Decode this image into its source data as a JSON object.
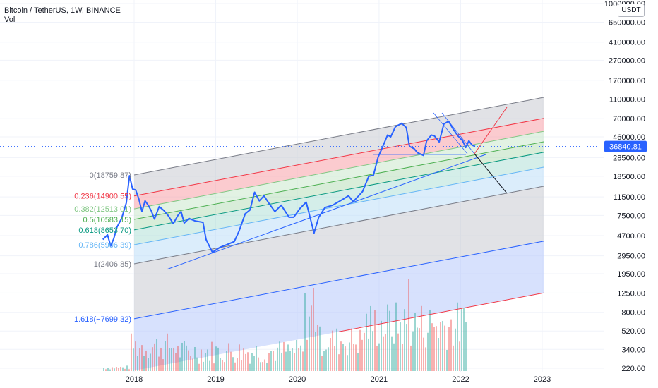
{
  "header": {
    "title": "Bitcoin / TetherUS, 1W, BINANCE",
    "indicator": "Vol"
  },
  "currency_badge": "USDT",
  "colors": {
    "price_line": "#2962ff",
    "last_price_tag": "#2962ff",
    "fib_0": "#787b86",
    "fib_0_236": "#f23645",
    "fib_0_382": "#81c784",
    "fib_0_5": "#4caf50",
    "fib_0_618": "#089981",
    "fib_0_786": "#64b5f6",
    "fib_1": "#787b86",
    "fib_1_618": "#2962ff",
    "volume_up": "#26a69a",
    "volume_down": "#ef5350"
  },
  "chart_data": {
    "type": "line",
    "title": "Bitcoin / TetherUS, 1W, BINANCE",
    "y_scale": "log",
    "y_ticks": [
      "1000000.00",
      "650000.00",
      "410000.00",
      "270000.00",
      "170000.00",
      "110000.00",
      "70000.00",
      "46000.00",
      "28500.00",
      "18500.00",
      "11500.00",
      "7500.00",
      "4700.00",
      "2950.00",
      "1950.00",
      "1250.00",
      "800.00",
      "520.00",
      "340.00",
      "220.00"
    ],
    "x_ticks": [
      "2018",
      "2019",
      "2020",
      "2021",
      "2022",
      "2023"
    ],
    "last_price": "36840.81",
    "price_series": {
      "name": "BTCUSDT",
      "points": [
        [
          "2017-08-14",
          4300
        ],
        [
          "2017-09-04",
          4800
        ],
        [
          "2017-09-18",
          3700
        ],
        [
          "2017-10-02",
          4400
        ],
        [
          "2017-10-16",
          5700
        ],
        [
          "2017-11-06",
          7000
        ],
        [
          "2017-11-27",
          10000
        ],
        [
          "2017-12-11",
          18759
        ],
        [
          "2017-12-25",
          13800
        ],
        [
          "2018-01-08",
          13500
        ],
        [
          "2018-01-22",
          11000
        ],
        [
          "2018-02-05",
          8200
        ],
        [
          "2018-02-19",
          10500
        ],
        [
          "2018-03-05",
          9500
        ],
        [
          "2018-03-19",
          8300
        ],
        [
          "2018-04-02",
          6900
        ],
        [
          "2018-04-23",
          9200
        ],
        [
          "2018-05-14",
          8400
        ],
        [
          "2018-06-04",
          7400
        ],
        [
          "2018-06-25",
          6200
        ],
        [
          "2018-07-16",
          7500
        ],
        [
          "2018-07-30",
          8200
        ],
        [
          "2018-08-13",
          6300
        ],
        [
          "2018-09-03",
          7000
        ],
        [
          "2018-10-01",
          6600
        ],
        [
          "2018-11-05",
          6400
        ],
        [
          "2018-11-19",
          4300
        ],
        [
          "2018-12-17",
          3200
        ],
        [
          "2019-01-21",
          3600
        ],
        [
          "2019-02-18",
          3800
        ],
        [
          "2019-03-25",
          4100
        ],
        [
          "2019-04-15",
          5200
        ],
        [
          "2019-05-13",
          7800
        ],
        [
          "2019-06-03",
          8500
        ],
        [
          "2019-06-24",
          12800
        ],
        [
          "2019-07-15",
          10500
        ],
        [
          "2019-08-05",
          11800
        ],
        [
          "2019-08-26",
          10000
        ],
        [
          "2019-09-23",
          8200
        ],
        [
          "2019-10-21",
          9500
        ],
        [
          "2019-11-25",
          7200
        ],
        [
          "2019-12-16",
          7200
        ],
        [
          "2020-01-13",
          8800
        ],
        [
          "2020-02-10",
          10200
        ],
        [
          "2020-03-16",
          5000
        ],
        [
          "2020-04-06",
          7200
        ],
        [
          "2020-05-04",
          9000
        ],
        [
          "2020-06-08",
          9500
        ],
        [
          "2020-07-27",
          11000
        ],
        [
          "2020-08-17",
          11800
        ],
        [
          "2020-09-07",
          10300
        ],
        [
          "2020-10-19",
          13000
        ],
        [
          "2020-11-16",
          18500
        ],
        [
          "2020-12-07",
          19000
        ],
        [
          "2020-12-28",
          29000
        ],
        [
          "2021-01-11",
          34000
        ],
        [
          "2021-02-08",
          48000
        ],
        [
          "2021-02-22",
          46000
        ],
        [
          "2021-03-15",
          58000
        ],
        [
          "2021-04-12",
          63000
        ],
        [
          "2021-05-03",
          57000
        ],
        [
          "2021-05-17",
          37000
        ],
        [
          "2021-06-07",
          35000
        ],
        [
          "2021-06-21",
          32000
        ],
        [
          "2021-07-19",
          30000
        ],
        [
          "2021-08-02",
          42000
        ],
        [
          "2021-08-23",
          48000
        ],
        [
          "2021-09-06",
          47000
        ],
        [
          "2021-09-27",
          41000
        ],
        [
          "2021-10-18",
          62000
        ],
        [
          "2021-11-08",
          66000
        ],
        [
          "2021-11-29",
          55000
        ],
        [
          "2021-12-20",
          47000
        ],
        [
          "2022-01-10",
          42000
        ],
        [
          "2022-01-24",
          36000
        ],
        [
          "2022-02-07",
          42000
        ],
        [
          "2022-02-21",
          38000
        ],
        [
          "2022-03-07",
          36840.81
        ]
      ]
    },
    "fibonacci_channel": {
      "levels": [
        {
          "ratio": 0,
          "label": "0(18759.87)"
        },
        {
          "ratio": 0.236,
          "label": "0.236(14900.55)"
        },
        {
          "ratio": 0.382,
          "label": "0.382(12513.01)"
        },
        {
          "ratio": 0.5,
          "label": "0.5(10583.15)"
        },
        {
          "ratio": 0.618,
          "label": "0.618(8653.70)"
        },
        {
          "ratio": 0.786,
          "label": "0.786(5906.39)"
        },
        {
          "ratio": 1,
          "label": "1(2406.85)"
        },
        {
          "ratio": 1.618,
          "label": "1.618(−7699.32)"
        }
      ]
    },
    "volume": {
      "name": "Vol",
      "shown": true
    }
  }
}
